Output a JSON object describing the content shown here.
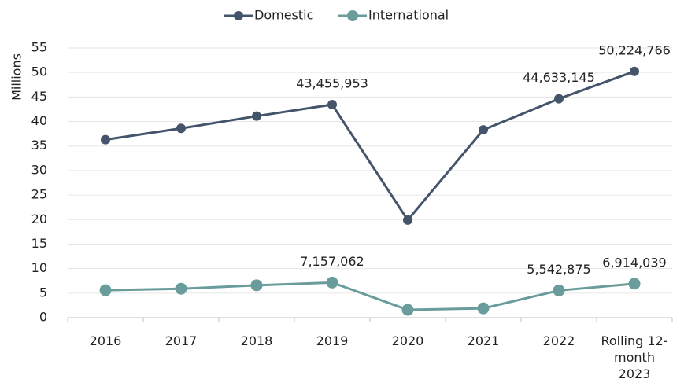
{
  "chart_data": {
    "type": "line",
    "y_label": "Millions",
    "categories": [
      "2016",
      "2017",
      "2018",
      "2019",
      "2020",
      "2021",
      "2022",
      "Rolling 12-month 2023"
    ],
    "series": [
      {
        "name": "Domestic",
        "color": "#44546a",
        "values": [
          36.3,
          38.6,
          41.1,
          43.455953,
          19.9,
          38.3,
          44.633145,
          50.224766
        ],
        "value_labels": [
          null,
          null,
          null,
          "43,455,953",
          null,
          null,
          "44,633,145",
          "50,224,766"
        ]
      },
      {
        "name": "International",
        "color": "#6a9c9c",
        "values": [
          5.6,
          5.9,
          6.6,
          7.157062,
          1.6,
          1.9,
          5.542875,
          6.914039
        ],
        "value_labels": [
          null,
          null,
          null,
          "7,157,062",
          null,
          null,
          "5,542,875",
          "6,914,039"
        ]
      }
    ],
    "ylim": [
      0,
      55
    ],
    "yticks": [
      0,
      5,
      10,
      15,
      20,
      25,
      30,
      35,
      40,
      45,
      50,
      55
    ],
    "grid": true,
    "legend": "top"
  }
}
